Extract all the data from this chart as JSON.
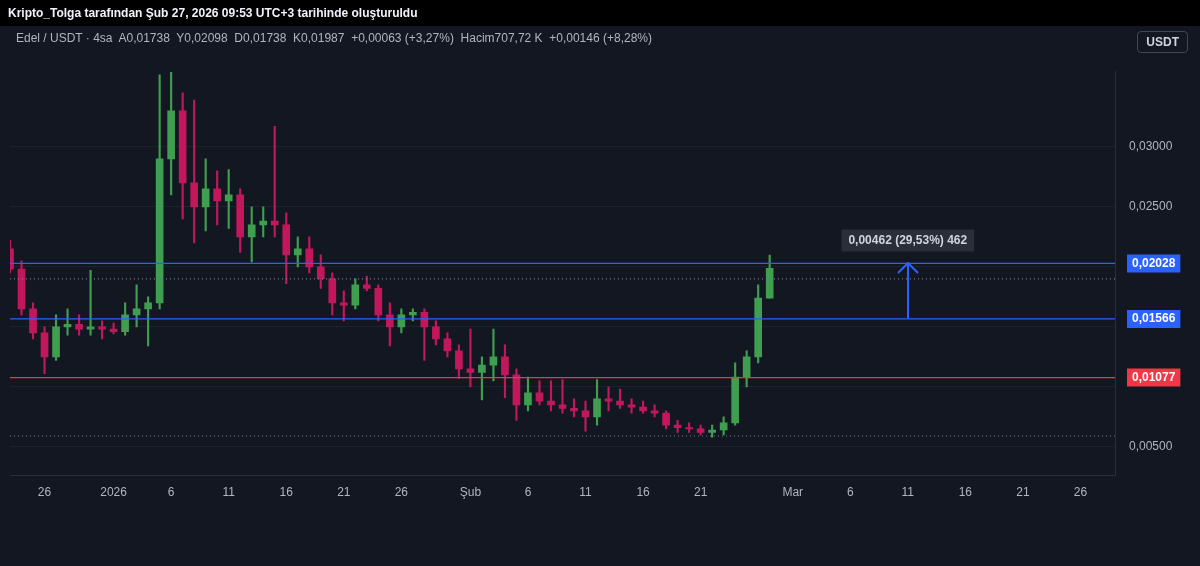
{
  "chart_data": {
    "type": "candlestick",
    "title": "Kripto_Tolga tarafından Şub 27, 2026 09:53 UTC+3 tarihinde oluşturuldu",
    "subtitle": "Edel / USDT · 4sa  A0,01738  Y0,02098  D0,01738  K0,01987  +0,00063 (+3,27%)  Hacim707,72 K  +0,00146 (+8,28%)",
    "x": [
      "2025-12-23",
      "2025-12-24",
      "2025-12-25",
      "2025-12-26",
      "2025-12-27",
      "2025-12-28",
      "2025-12-29",
      "2025-12-30",
      "2025-12-31",
      "2026-01-01",
      "2026-01-02",
      "2026-01-03",
      "2026-01-04",
      "2026-01-05",
      "2026-01-06",
      "2026-01-07",
      "2026-01-08",
      "2026-01-09",
      "2026-01-10",
      "2026-01-11",
      "2026-01-12",
      "2026-01-13",
      "2026-01-14",
      "2026-01-15",
      "2026-01-16",
      "2026-01-17",
      "2026-01-18",
      "2026-01-19",
      "2026-01-20",
      "2026-01-21",
      "2026-01-22",
      "2026-01-23",
      "2026-01-24",
      "2026-01-25",
      "2026-01-26",
      "2026-01-27",
      "2026-01-28",
      "2026-01-29",
      "2026-01-30",
      "2026-01-31",
      "2026-02-01",
      "2026-02-02",
      "2026-02-03",
      "2026-02-04",
      "2026-02-05",
      "2026-02-06",
      "2026-02-07",
      "2026-02-08",
      "2026-02-09",
      "2026-02-10",
      "2026-02-11",
      "2026-02-12",
      "2026-02-13",
      "2026-02-14",
      "2026-02-15",
      "2026-02-16",
      "2026-02-17",
      "2026-02-18",
      "2026-02-19",
      "2026-02-20",
      "2026-02-21",
      "2026-02-22",
      "2026-02-23",
      "2026-02-24",
      "2026-02-25",
      "2026-02-26",
      "2026-02-27"
    ],
    "ohlc": [
      [
        0.0215,
        0.0222,
        0.0195,
        0.0198
      ],
      [
        0.0198,
        0.0205,
        0.016,
        0.0165
      ],
      [
        0.0165,
        0.017,
        0.014,
        0.0145
      ],
      [
        0.0145,
        0.015,
        0.0111,
        0.0125
      ],
      [
        0.0125,
        0.016,
        0.0122,
        0.015
      ],
      [
        0.015,
        0.0165,
        0.0143,
        0.0152
      ],
      [
        0.0152,
        0.016,
        0.0143,
        0.0148
      ],
      [
        0.0148,
        0.0197,
        0.0143,
        0.015
      ],
      [
        0.015,
        0.0155,
        0.014,
        0.0148
      ],
      [
        0.0148,
        0.0153,
        0.0144,
        0.0146
      ],
      [
        0.0146,
        0.017,
        0.0143,
        0.016
      ],
      [
        0.016,
        0.0185,
        0.015,
        0.0165
      ],
      [
        0.0165,
        0.0175,
        0.0134,
        0.017
      ],
      [
        0.017,
        0.036,
        0.0165,
        0.029
      ],
      [
        0.029,
        0.0362,
        0.026,
        0.033
      ],
      [
        0.033,
        0.0345,
        0.024,
        0.027
      ],
      [
        0.027,
        0.0339,
        0.022,
        0.025
      ],
      [
        0.025,
        0.029,
        0.023,
        0.0265
      ],
      [
        0.0265,
        0.028,
        0.0235,
        0.0255
      ],
      [
        0.0255,
        0.0281,
        0.0232,
        0.026
      ],
      [
        0.026,
        0.0265,
        0.0212,
        0.0225
      ],
      [
        0.0225,
        0.025,
        0.0204,
        0.0235
      ],
      [
        0.0235,
        0.025,
        0.0225,
        0.0238
      ],
      [
        0.0238,
        0.0317,
        0.0225,
        0.0235
      ],
      [
        0.0235,
        0.0245,
        0.0186,
        0.021
      ],
      [
        0.021,
        0.0225,
        0.02,
        0.0215
      ],
      [
        0.0215,
        0.0225,
        0.0195,
        0.02
      ],
      [
        0.02,
        0.021,
        0.0182,
        0.019
      ],
      [
        0.019,
        0.0195,
        0.016,
        0.017
      ],
      [
        0.017,
        0.018,
        0.0155,
        0.0168
      ],
      [
        0.0168,
        0.019,
        0.0165,
        0.0185
      ],
      [
        0.0185,
        0.0192,
        0.018,
        0.0182
      ],
      [
        0.0182,
        0.0185,
        0.0155,
        0.016
      ],
      [
        0.016,
        0.017,
        0.0134,
        0.015
      ],
      [
        0.015,
        0.0165,
        0.0145,
        0.016
      ],
      [
        0.016,
        0.0165,
        0.0155,
        0.0162
      ],
      [
        0.0162,
        0.0165,
        0.0122,
        0.015
      ],
      [
        0.015,
        0.0155,
        0.0135,
        0.014
      ],
      [
        0.014,
        0.0145,
        0.0125,
        0.013
      ],
      [
        0.013,
        0.0135,
        0.0107,
        0.0115
      ],
      [
        0.0115,
        0.0148,
        0.01,
        0.0112
      ],
      [
        0.0112,
        0.0125,
        0.0089,
        0.0118
      ],
      [
        0.0118,
        0.0148,
        0.0105,
        0.0125
      ],
      [
        0.0125,
        0.0135,
        0.0091,
        0.011
      ],
      [
        0.011,
        0.0115,
        0.0072,
        0.0085
      ],
      [
        0.0085,
        0.0108,
        0.008,
        0.0095
      ],
      [
        0.0095,
        0.0105,
        0.0085,
        0.0088
      ],
      [
        0.0088,
        0.0105,
        0.008,
        0.0085
      ],
      [
        0.0085,
        0.0106,
        0.0078,
        0.0082
      ],
      [
        0.0082,
        0.009,
        0.0075,
        0.008
      ],
      [
        0.008,
        0.0088,
        0.0063,
        0.0075
      ],
      [
        0.0075,
        0.0106,
        0.0068,
        0.009
      ],
      [
        0.009,
        0.01,
        0.008,
        0.0088
      ],
      [
        0.0088,
        0.0098,
        0.0082,
        0.0085
      ],
      [
        0.0085,
        0.009,
        0.0078,
        0.0083
      ],
      [
        0.0083,
        0.0088,
        0.0078,
        0.008
      ],
      [
        0.008,
        0.0085,
        0.0075,
        0.0078
      ],
      [
        0.0078,
        0.008,
        0.0065,
        0.0068
      ],
      [
        0.0068,
        0.0072,
        0.0062,
        0.0066
      ],
      [
        0.0066,
        0.007,
        0.0062,
        0.0065
      ],
      [
        0.0065,
        0.0068,
        0.006,
        0.0062
      ],
      [
        0.0062,
        0.0068,
        0.0058,
        0.0064
      ],
      [
        0.0064,
        0.0075,
        0.006,
        0.007
      ],
      [
        0.007,
        0.012,
        0.0068,
        0.0108
      ],
      [
        0.0108,
        0.013,
        0.01,
        0.0125
      ],
      [
        0.0125,
        0.0185,
        0.012,
        0.0174
      ],
      [
        0.01738,
        0.02098,
        0.01738,
        0.01987
      ]
    ],
    "colors": [
      "#c2185b",
      "#c2185b",
      "#c2185b",
      "#c2185b",
      "#3f9e4f",
      "#3f9e4f",
      "#c2185b",
      "#3f9e4f",
      "#c2185b",
      "#c2185b",
      "#3f9e4f",
      "#3f9e4f",
      "#3f9e4f",
      "#3f9e4f",
      "#3f9e4f",
      "#c2185b",
      "#c2185b",
      "#3f9e4f",
      "#c2185b",
      "#3f9e4f",
      "#c2185b",
      "#3f9e4f",
      "#3f9e4f",
      "#c2185b",
      "#c2185b",
      "#3f9e4f",
      "#c2185b",
      "#c2185b",
      "#c2185b",
      "#c2185b",
      "#3f9e4f",
      "#c2185b",
      "#c2185b",
      "#c2185b",
      "#3f9e4f",
      "#3f9e4f",
      "#c2185b",
      "#c2185b",
      "#c2185b",
      "#c2185b",
      "#c2185b",
      "#3f9e4f",
      "#3f9e4f",
      "#c2185b",
      "#c2185b",
      "#3f9e4f",
      "#c2185b",
      "#c2185b",
      "#c2185b",
      "#c2185b",
      "#c2185b",
      "#3f9e4f",
      "#c2185b",
      "#c2185b",
      "#c2185b",
      "#c2185b",
      "#c2185b",
      "#c2185b",
      "#c2185b",
      "#c2185b",
      "#c2185b",
      "#3f9e4f",
      "#3f9e4f",
      "#3f9e4f",
      "#3f9e4f",
      "#3f9e4f",
      "#3f9e4f"
    ],
    "xlim": [
      "2025-12-23",
      "2026-03-29"
    ],
    "xticks": [
      {
        "value": "2025-12-26",
        "label": "26"
      },
      {
        "value": "2026-01-01",
        "label": "2026"
      },
      {
        "value": "2026-01-06",
        "label": "6"
      },
      {
        "value": "2026-01-11",
        "label": "11"
      },
      {
        "value": "2026-01-16",
        "label": "16"
      },
      {
        "value": "2026-01-21",
        "label": "21"
      },
      {
        "value": "2026-01-26",
        "label": "26"
      },
      {
        "value": "2026-02-01",
        "label": "Şub"
      },
      {
        "value": "2026-02-06",
        "label": "6"
      },
      {
        "value": "2026-02-11",
        "label": "11"
      },
      {
        "value": "2026-02-16",
        "label": "16"
      },
      {
        "value": "2026-02-21",
        "label": "21"
      },
      {
        "value": "2026-03-01",
        "label": "Mar"
      },
      {
        "value": "2026-03-06",
        "label": "6"
      },
      {
        "value": "2026-03-11",
        "label": "11"
      },
      {
        "value": "2026-03-16",
        "label": "16"
      },
      {
        "value": "2026-03-21",
        "label": "21"
      },
      {
        "value": "2026-03-26",
        "label": "26"
      }
    ],
    "ylim": [
      0.0026,
      0.0363
    ],
    "yticks": [
      {
        "value": 0.005,
        "label": "0,00500"
      },
      {
        "value": 0.01,
        "label": null
      },
      {
        "value": 0.015,
        "label": null
      },
      {
        "value": 0.02,
        "label": null
      },
      {
        "value": 0.025,
        "label": "0,02500"
      },
      {
        "value": 0.03,
        "label": "0,03000"
      }
    ],
    "grid": "y",
    "legend": false,
    "ref_lines": [
      {
        "axis": "y",
        "value": 0.02028,
        "label": "0,02028",
        "color": "#2962ff"
      },
      {
        "axis": "y",
        "value": 0.01566,
        "label": "0,01566",
        "color": "#2962ff"
      },
      {
        "axis": "y",
        "value": 0.01077,
        "label": "0,01077",
        "color": "#f23645"
      },
      {
        "axis": "y",
        "value": 0.019,
        "label": null,
        "color": "#787b86",
        "line_style": "dotted"
      },
      {
        "axis": "y",
        "value": 0.0059,
        "label": null,
        "color": "#787b86",
        "line_style": "dotted"
      }
    ],
    "annotations": [
      {
        "text": "0,00462 (29,53%) 462",
        "x": "2026-03-11",
        "y": 0.02028
      },
      "USDT"
    ]
  }
}
